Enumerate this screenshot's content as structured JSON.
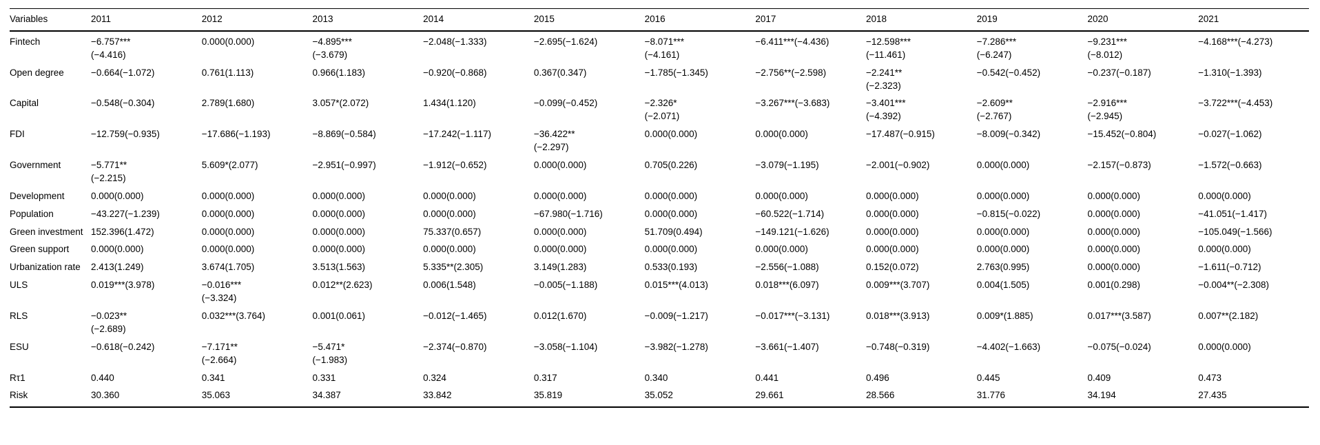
{
  "table": {
    "description": "Regression results by year",
    "columns": [
      "Variables",
      "2011",
      "2012",
      "2013",
      "2014",
      "2015",
      "2016",
      "2017",
      "2018",
      "2019",
      "2020",
      "2021"
    ],
    "rows": [
      {
        "label": "Fintech",
        "values": [
          "−6.757***\n(−4.416)",
          "0.000(0.000)",
          "−4.895***\n(−3.679)",
          "−2.048(−1.333)",
          "−2.695(−1.624)",
          "−8.071***\n(−4.161)",
          "−6.411***(−4.436)",
          "−12.598***\n(−11.461)",
          "−7.286***\n(−6.247)",
          "−9.231***\n(−8.012)",
          "−4.168***(−4.273)"
        ]
      },
      {
        "label": "Open degree",
        "values": [
          "−0.664(−1.072)",
          "0.761(1.113)",
          "0.966(1.183)",
          "−0.920(−0.868)",
          "0.367(0.347)",
          "−1.785(−1.345)",
          "−2.756**(−2.598)",
          "−2.241**\n(−2.323)",
          "−0.542(−0.452)",
          "−0.237(−0.187)",
          "−1.310(−1.393)"
        ]
      },
      {
        "label": "Capital",
        "values": [
          "−0.548(−0.304)",
          "2.789(1.680)",
          "3.057*(2.072)",
          "1.434(1.120)",
          "−0.099(−0.452)",
          "−2.326*\n(−2.071)",
          "−3.267***(−3.683)",
          "−3.401***\n(−4.392)",
          "−2.609**\n(−2.767)",
          "−2.916***\n(−2.945)",
          "−3.722***(−4.453)"
        ]
      },
      {
        "label": "FDI",
        "values": [
          "−12.759(−0.935)",
          "−17.686(−1.193)",
          "−8.869(−0.584)",
          "−17.242(−1.117)",
          "−36.422**\n(−2.297)",
          "0.000(0.000)",
          "0.000(0.000)",
          "−17.487(−0.915)",
          "−8.009(−0.342)",
          "−15.452(−0.804)",
          "−0.027(−1.062)"
        ]
      },
      {
        "label": "Government",
        "values": [
          "−5.771**\n(−2.215)",
          "5.609*(2.077)",
          "−2.951(−0.997)",
          "−1.912(−0.652)",
          "0.000(0.000)",
          "0.705(0.226)",
          "−3.079(−1.195)",
          "−2.001(−0.902)",
          "0.000(0.000)",
          "−2.157(−0.873)",
          "−1.572(−0.663)"
        ]
      },
      {
        "label": "Development",
        "values": [
          "0.000(0.000)",
          "0.000(0.000)",
          "0.000(0.000)",
          "0.000(0.000)",
          "0.000(0.000)",
          "0.000(0.000)",
          "0.000(0.000)",
          "0.000(0.000)",
          "0.000(0.000)",
          "0.000(0.000)",
          "0.000(0.000)"
        ]
      },
      {
        "label": "Population",
        "values": [
          "−43.227(−1.239)",
          "0.000(0.000)",
          "0.000(0.000)",
          "0.000(0.000)",
          "−67.980(−1.716)",
          "0.000(0.000)",
          "−60.522(−1.714)",
          "0.000(0.000)",
          "−0.815(−0.022)",
          "0.000(0.000)",
          "−41.051(−1.417)"
        ]
      },
      {
        "label": "Green investment",
        "values": [
          "152.396(1.472)",
          "0.000(0.000)",
          "0.000(0.000)",
          "75.337(0.657)",
          "0.000(0.000)",
          "51.709(0.494)",
          "−149.121(−1.626)",
          "0.000(0.000)",
          "0.000(0.000)",
          "0.000(0.000)",
          "−105.049(−1.566)"
        ]
      },
      {
        "label": "Green support",
        "values": [
          "0.000(0.000)",
          "0.000(0.000)",
          "0.000(0.000)",
          "0.000(0.000)",
          "0.000(0.000)",
          "0.000(0.000)",
          "0.000(0.000)",
          "0.000(0.000)",
          "0.000(0.000)",
          "0.000(0.000)",
          "0.000(0.000)"
        ]
      },
      {
        "label": "Urbanization rate",
        "values": [
          "2.413(1.249)",
          "3.674(1.705)",
          "3.513(1.563)",
          "5.335**(2.305)",
          "3.149(1.283)",
          "0.533(0.193)",
          "−2.556(−1.088)",
          "0.152(0.072)",
          "2.763(0.995)",
          "0.000(0.000)",
          "−1.611(−0.712)"
        ]
      },
      {
        "label": "ULS",
        "values": [
          "0.019***(3.978)",
          "−0.016***\n(−3.324)",
          "0.012**(2.623)",
          "0.006(1.548)",
          "−0.005(−1.188)",
          "0.015***(4.013)",
          "0.018***(6.097)",
          "0.009***(3.707)",
          "0.004(1.505)",
          "0.001(0.298)",
          "−0.004**(−2.308)"
        ]
      },
      {
        "label": "RLS",
        "values": [
          "−0.023**\n(−2.689)",
          "0.032***(3.764)",
          "0.001(0.061)",
          "−0.012(−1.465)",
          "0.012(1.670)",
          "−0.009(−1.217)",
          "−0.017***(−3.131)",
          "0.018***(3.913)",
          "0.009*(1.885)",
          "0.017***(3.587)",
          "0.007**(2.182)"
        ]
      },
      {
        "label": "ESU",
        "values": [
          "−0.618(−0.242)",
          "−7.171**\n(−2.664)",
          "−5.471*\n(−1.983)",
          "−2.374(−0.870)",
          "−3.058(−1.104)",
          "−3.982(−1.278)",
          "−3.661(−1.407)",
          "−0.748(−0.319)",
          "−4.402(−1.663)",
          "−0.075(−0.024)",
          "0.000(0.000)"
        ]
      },
      {
        "label": "Rτ1",
        "values": [
          "0.440",
          "0.341",
          "0.331",
          "0.324",
          "0.317",
          "0.340",
          "0.441",
          "0.496",
          "0.445",
          "0.409",
          "0.473"
        ]
      },
      {
        "label": "Risk",
        "values": [
          "30.360",
          "35.063",
          "34.387",
          "33.842",
          "35.819",
          "35.052",
          "29.661",
          "28.566",
          "31.776",
          "34.194",
          "27.435"
        ]
      }
    ]
  }
}
